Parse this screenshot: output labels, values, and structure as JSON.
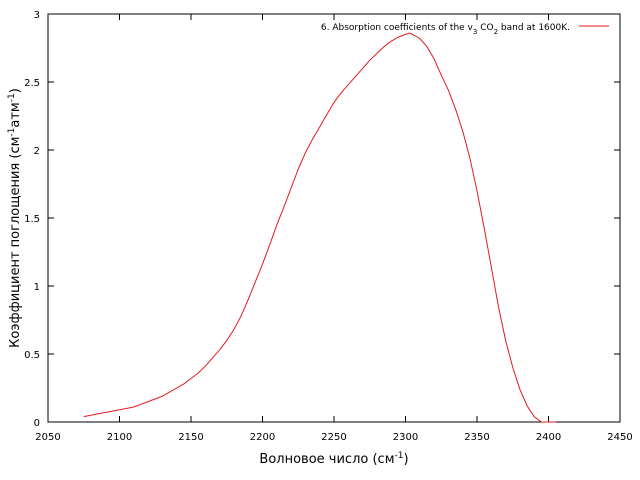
{
  "chart_data": {
    "type": "line",
    "xlabel": "Волновое число (см",
    "xlabel_sup": "-1",
    "xlabel_end": ")",
    "ylabel": "Коэффициент поглощения (см",
    "ylabel_sup1": "-1",
    "ylabel_mid": "атм",
    "ylabel_sup2": "-1",
    "ylabel_end": ")",
    "xlim": [
      2050,
      2450
    ],
    "ylim": [
      0,
      3
    ],
    "xticks": [
      2050,
      2100,
      2150,
      2200,
      2250,
      2300,
      2350,
      2400,
      2450
    ],
    "yticks": [
      0,
      0.5,
      1,
      1.5,
      2,
      2.5,
      3
    ],
    "grid": false,
    "legend_position": "top-right",
    "legend_parts": {
      "prefix": "6. Absorption coefficients of the v",
      "sub1": "3",
      "middle": " CO",
      "sub2": "2",
      "suffix": " band at 1600K."
    },
    "series": [
      {
        "color": "#e41a1c",
        "x": [
          2075,
          2080,
          2085,
          2090,
          2095,
          2100,
          2105,
          2110,
          2115,
          2120,
          2125,
          2130,
          2135,
          2140,
          2145,
          2150,
          2155,
          2160,
          2165,
          2170,
          2175,
          2180,
          2185,
          2190,
          2195,
          2200,
          2205,
          2210,
          2215,
          2220,
          2225,
          2230,
          2235,
          2240,
          2245,
          2250,
          2255,
          2260,
          2265,
          2270,
          2275,
          2280,
          2285,
          2290,
          2295,
          2300,
          2303,
          2305,
          2310,
          2315,
          2320,
          2325,
          2330,
          2335,
          2340,
          2345,
          2350,
          2355,
          2360,
          2365,
          2370,
          2375,
          2380,
          2385,
          2390,
          2395,
          2400,
          2405
        ],
        "y": [
          0.04,
          0.05,
          0.06,
          0.07,
          0.08,
          0.09,
          0.1,
          0.11,
          0.13,
          0.15,
          0.17,
          0.19,
          0.22,
          0.25,
          0.28,
          0.32,
          0.36,
          0.41,
          0.47,
          0.53,
          0.6,
          0.68,
          0.78,
          0.9,
          1.03,
          1.16,
          1.3,
          1.45,
          1.58,
          1.72,
          1.86,
          1.98,
          2.08,
          2.17,
          2.26,
          2.35,
          2.42,
          2.48,
          2.54,
          2.6,
          2.66,
          2.71,
          2.76,
          2.8,
          2.83,
          2.85,
          2.86,
          2.85,
          2.82,
          2.76,
          2.67,
          2.55,
          2.44,
          2.3,
          2.14,
          1.94,
          1.7,
          1.43,
          1.14,
          0.85,
          0.6,
          0.4,
          0.24,
          0.12,
          0.04,
          0.0,
          0.0,
          0.0
        ]
      }
    ]
  }
}
